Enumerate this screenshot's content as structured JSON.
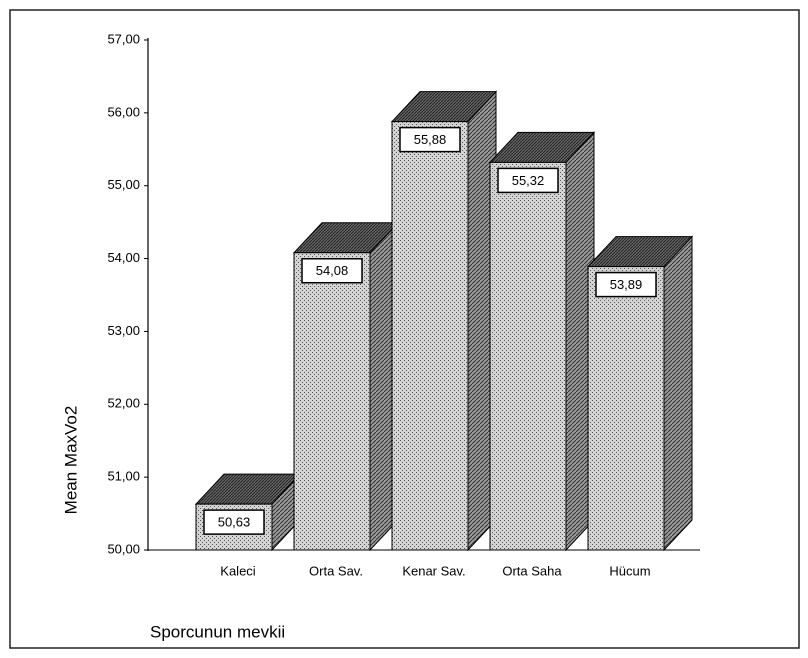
{
  "chart_data": {
    "type": "bar3d",
    "x_label": "Sporcunun mevkii",
    "y_label": "Mean MaxVo2",
    "categories": [
      "Kaleci",
      "Orta Sav.",
      "Kenar Sav.",
      "Orta Saha",
      "Hücum"
    ],
    "values": [
      50.63,
      54.08,
      55.88,
      55.32,
      53.89
    ],
    "value_labels": [
      "50,63",
      "54,08",
      "55,88",
      "55,32",
      "53,89"
    ],
    "ylim": [
      50,
      57
    ],
    "yticks": [
      {
        "value": 50,
        "label": "50,00"
      },
      {
        "value": 51,
        "label": "51,00"
      },
      {
        "value": 52,
        "label": "52,00"
      },
      {
        "value": 53,
        "label": "53,00"
      },
      {
        "value": 54,
        "label": "54,00"
      },
      {
        "value": 55,
        "label": "55,00"
      },
      {
        "value": 56,
        "label": "56,00"
      },
      {
        "value": 57,
        "label": "57,00"
      }
    ],
    "color": "#b8b8b8"
  }
}
